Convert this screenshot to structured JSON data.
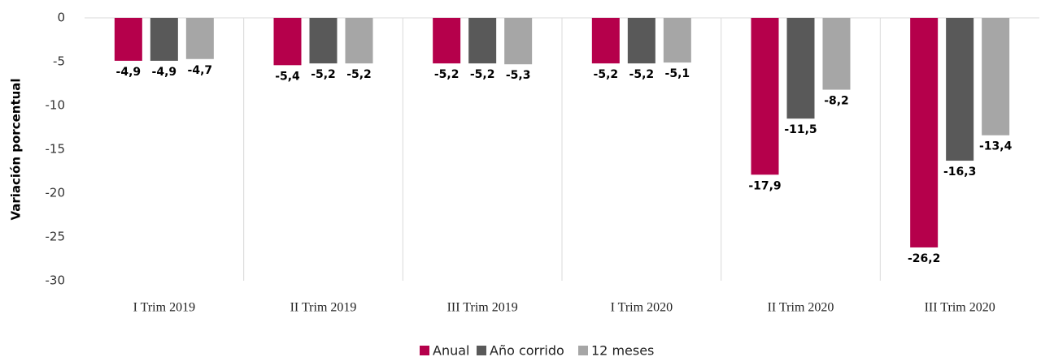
{
  "chart_data": {
    "type": "bar",
    "y_label": "Variación porcentual",
    "categories": [
      "I Trim 2019",
      "II Trim 2019",
      "III Trim 2019",
      "I Trim 2020",
      "II Trim 2020",
      "III Trim 2020"
    ],
    "series": [
      {
        "name": "Anual",
        "color": "#b5004b",
        "values": [
          -4.9,
          -5.4,
          -5.2,
          -5.2,
          -17.9,
          -26.2
        ],
        "value_labels": [
          "-4,9",
          "-5,4",
          "-5,2",
          "-5,2",
          "-17,9",
          "-26,2"
        ]
      },
      {
        "name": "Año corrido",
        "color": "#595959",
        "values": [
          -4.9,
          -5.2,
          -5.2,
          -5.2,
          -11.5,
          -16.3
        ],
        "value_labels": [
          "-4,9",
          "-5,2",
          "-5,2",
          "-5,2",
          "-11,5",
          "-16,3"
        ]
      },
      {
        "name": "12 meses",
        "color": "#a6a6a6",
        "values": [
          -4.7,
          -5.2,
          -5.3,
          -5.1,
          -8.2,
          -13.4
        ],
        "value_labels": [
          "-4,7",
          "-5,2",
          "-5,3",
          "-5,1",
          "-8,2",
          "-13,4"
        ]
      }
    ],
    "ylim": [
      -30,
      0
    ],
    "yticks": [
      0,
      -5,
      -10,
      -15,
      -20,
      -25,
      -30
    ],
    "grid": false,
    "legend": "bottom"
  }
}
